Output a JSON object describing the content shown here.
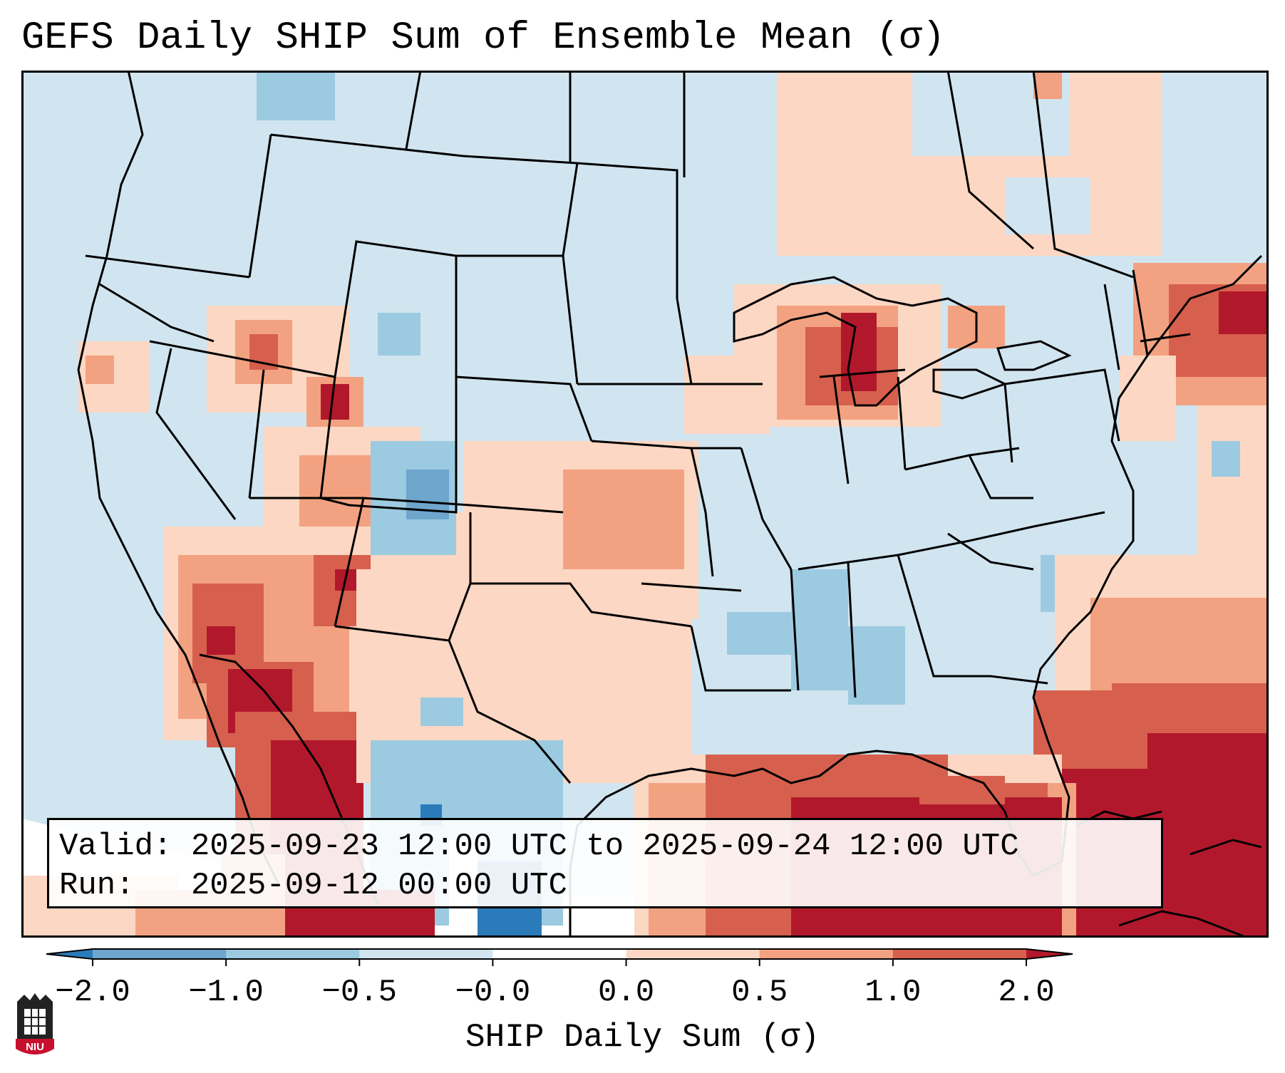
{
  "title": "GEFS Daily SHIP Sum of Ensemble Mean (σ)",
  "valid_line": "Valid: 2025-09-23 12:00 UTC to 2025-09-24 12:00 UTC",
  "run_line": "Run:   2025-09-12 00:00 UTC",
  "colorbar": {
    "label": "SHIP Daily Sum (σ)",
    "ticks": [
      "−2.0",
      "−1.0",
      "−0.5",
      "−0.0",
      "0.0",
      "0.5",
      "1.0",
      "2.0"
    ],
    "colors": [
      "#2b7bba",
      "#6ea6cd",
      "#9ccae1",
      "#d1e5f0",
      "#ffffff",
      "#fcd7c3",
      "#f3a281",
      "#d6604d",
      "#b2182b"
    ],
    "extend": "both"
  },
  "map": {
    "projection": "Lambert conformal (CONUS)",
    "field_colors": {
      "strong_negative": "#2b7bba",
      "moderate_negative": "#6ea6cd",
      "weak_negative": "#9ccae1",
      "near_zero_negative": "#d1e5f0",
      "near_zero_positive": "#fcd7c3",
      "weak_positive": "#f3a281",
      "moderate_positive": "#d6604d",
      "strong_positive": "#b2182b"
    },
    "regions": [
      {
        "name": "Gulf of Mexico and Atlantic off Southeast",
        "level": "strong_positive"
      },
      {
        "name": "Northern Lake Michigan",
        "level": "strong_positive"
      },
      {
        "name": "Northeast coast",
        "level": "moderate_positive"
      },
      {
        "name": "Southwest desert / Gulf of California",
        "level": "moderate_positive"
      },
      {
        "name": "Kansas / Oklahoma",
        "level": "weak_positive"
      },
      {
        "name": "Northern Mexico plateau",
        "level": "weak_negative"
      },
      {
        "name": "Lower Mississippi valley",
        "level": "weak_negative"
      },
      {
        "name": "Northern Plains and Great Basin",
        "level": "near_zero_negative"
      }
    ]
  },
  "logo": {
    "text": "NIU"
  }
}
